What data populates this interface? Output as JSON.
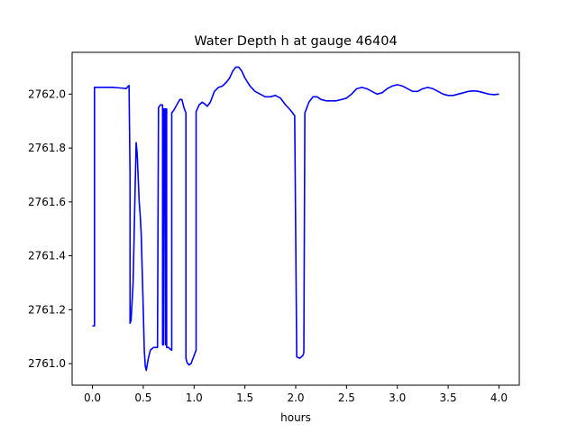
{
  "chart_data": {
    "type": "line",
    "title": "Water Depth h at gauge 46404",
    "xlabel": "hours",
    "ylabel": "",
    "xlim": [
      -0.2,
      4.2
    ],
    "ylim": [
      2760.92,
      2762.155
    ],
    "xticks": [
      0.0,
      0.5,
      1.0,
      1.5,
      2.0,
      2.5,
      3.0,
      3.5,
      4.0
    ],
    "xtick_labels": [
      "0.0",
      "0.5",
      "1.0",
      "1.5",
      "2.0",
      "2.5",
      "3.0",
      "3.5",
      "4.0"
    ],
    "yticks": [
      2761.0,
      2761.2,
      2761.4,
      2761.6,
      2761.8,
      2762.0
    ],
    "ytick_labels": [
      "2761.0",
      "2761.2",
      "2761.4",
      "2761.6",
      "2761.8",
      "2762.0"
    ],
    "grid": false,
    "series": [
      {
        "color": "#0000ff",
        "x": [
          0.0,
          0.02,
          0.02,
          0.1,
          0.2,
          0.3,
          0.33,
          0.36,
          0.37,
          0.37,
          0.38,
          0.4,
          0.42,
          0.43,
          0.44,
          0.46,
          0.47,
          0.48,
          0.5,
          0.51,
          0.52,
          0.53,
          0.55,
          0.57,
          0.6,
          0.62,
          0.64,
          0.65,
          0.65,
          0.67,
          0.69,
          0.69,
          0.7,
          0.7,
          0.71,
          0.72,
          0.72,
          0.73,
          0.73,
          0.74,
          0.75,
          0.76,
          0.78,
          0.78,
          0.8,
          0.83,
          0.86,
          0.88,
          0.9,
          0.92,
          0.92,
          0.93,
          0.95,
          0.97,
          0.99,
          1.01,
          1.02,
          1.02,
          1.05,
          1.08,
          1.1,
          1.13,
          1.16,
          1.2,
          1.24,
          1.28,
          1.32,
          1.35,
          1.38,
          1.41,
          1.44,
          1.47,
          1.5,
          1.55,
          1.6,
          1.65,
          1.7,
          1.75,
          1.8,
          1.85,
          1.9,
          1.95,
          1.98,
          1.99,
          2.01,
          2.04,
          2.07,
          2.08,
          2.09,
          2.1,
          2.13,
          2.17,
          2.21,
          2.25,
          2.3,
          2.35,
          2.4,
          2.45,
          2.5,
          2.55,
          2.6,
          2.65,
          2.7,
          2.75,
          2.8,
          2.85,
          2.9,
          2.95,
          3.0,
          3.05,
          3.1,
          3.15,
          3.2,
          3.25,
          3.3,
          3.35,
          3.4,
          3.45,
          3.5,
          3.55,
          3.6,
          3.65,
          3.7,
          3.75,
          3.8,
          3.85,
          3.9,
          3.95,
          4.0
        ],
        "y": [
          2761.14,
          2761.14,
          2762.025,
          2762.025,
          2762.025,
          2762.022,
          2762.02,
          2762.032,
          2761.7,
          2761.15,
          2761.16,
          2761.3,
          2761.65,
          2761.82,
          2761.78,
          2761.6,
          2761.55,
          2761.48,
          2761.2,
          2761.05,
          2760.99,
          2760.975,
          2761.02,
          2761.05,
          2761.06,
          2761.06,
          2761.06,
          2761.95,
          2761.95,
          2761.96,
          2761.96,
          2761.07,
          2761.07,
          2761.945,
          2761.945,
          2761.07,
          2761.945,
          2761.945,
          2761.06,
          2761.06,
          2761.06,
          2761.055,
          2761.05,
          2761.93,
          2761.94,
          2761.96,
          2761.98,
          2761.98,
          2761.95,
          2761.93,
          2761.02,
          2761.005,
          2760.995,
          2761.0,
          2761.02,
          2761.04,
          2761.05,
          2761.935,
          2761.96,
          2761.97,
          2761.965,
          2761.955,
          2761.97,
          2762.01,
          2762.025,
          2762.03,
          2762.045,
          2762.06,
          2762.085,
          2762.1,
          2762.1,
          2762.085,
          2762.06,
          2762.03,
          2762.01,
          2762.0,
          2761.99,
          2761.99,
          2761.995,
          2761.985,
          2761.96,
          2761.94,
          2761.925,
          2761.92,
          2761.025,
          2761.02,
          2761.03,
          2761.04,
          2761.93,
          2761.94,
          2761.97,
          2761.99,
          2761.99,
          2761.98,
          2761.975,
          2761.975,
          2761.975,
          2761.98,
          2761.985,
          2762.0,
          2762.02,
          2762.025,
          2762.02,
          2762.01,
          2762.0,
          2762.005,
          2762.02,
          2762.03,
          2762.035,
          2762.03,
          2762.02,
          2762.01,
          2762.01,
          2762.02,
          2762.025,
          2762.02,
          2762.01,
          2762.0,
          2761.995,
          2761.995,
          2762.0,
          2762.005,
          2762.01,
          2762.012,
          2762.01,
          2762.005,
          2762.0,
          2761.998,
          2762.0
        ]
      }
    ]
  },
  "colors": {
    "line": "#0000ff",
    "axes": "#000000",
    "background": "#ffffff"
  }
}
